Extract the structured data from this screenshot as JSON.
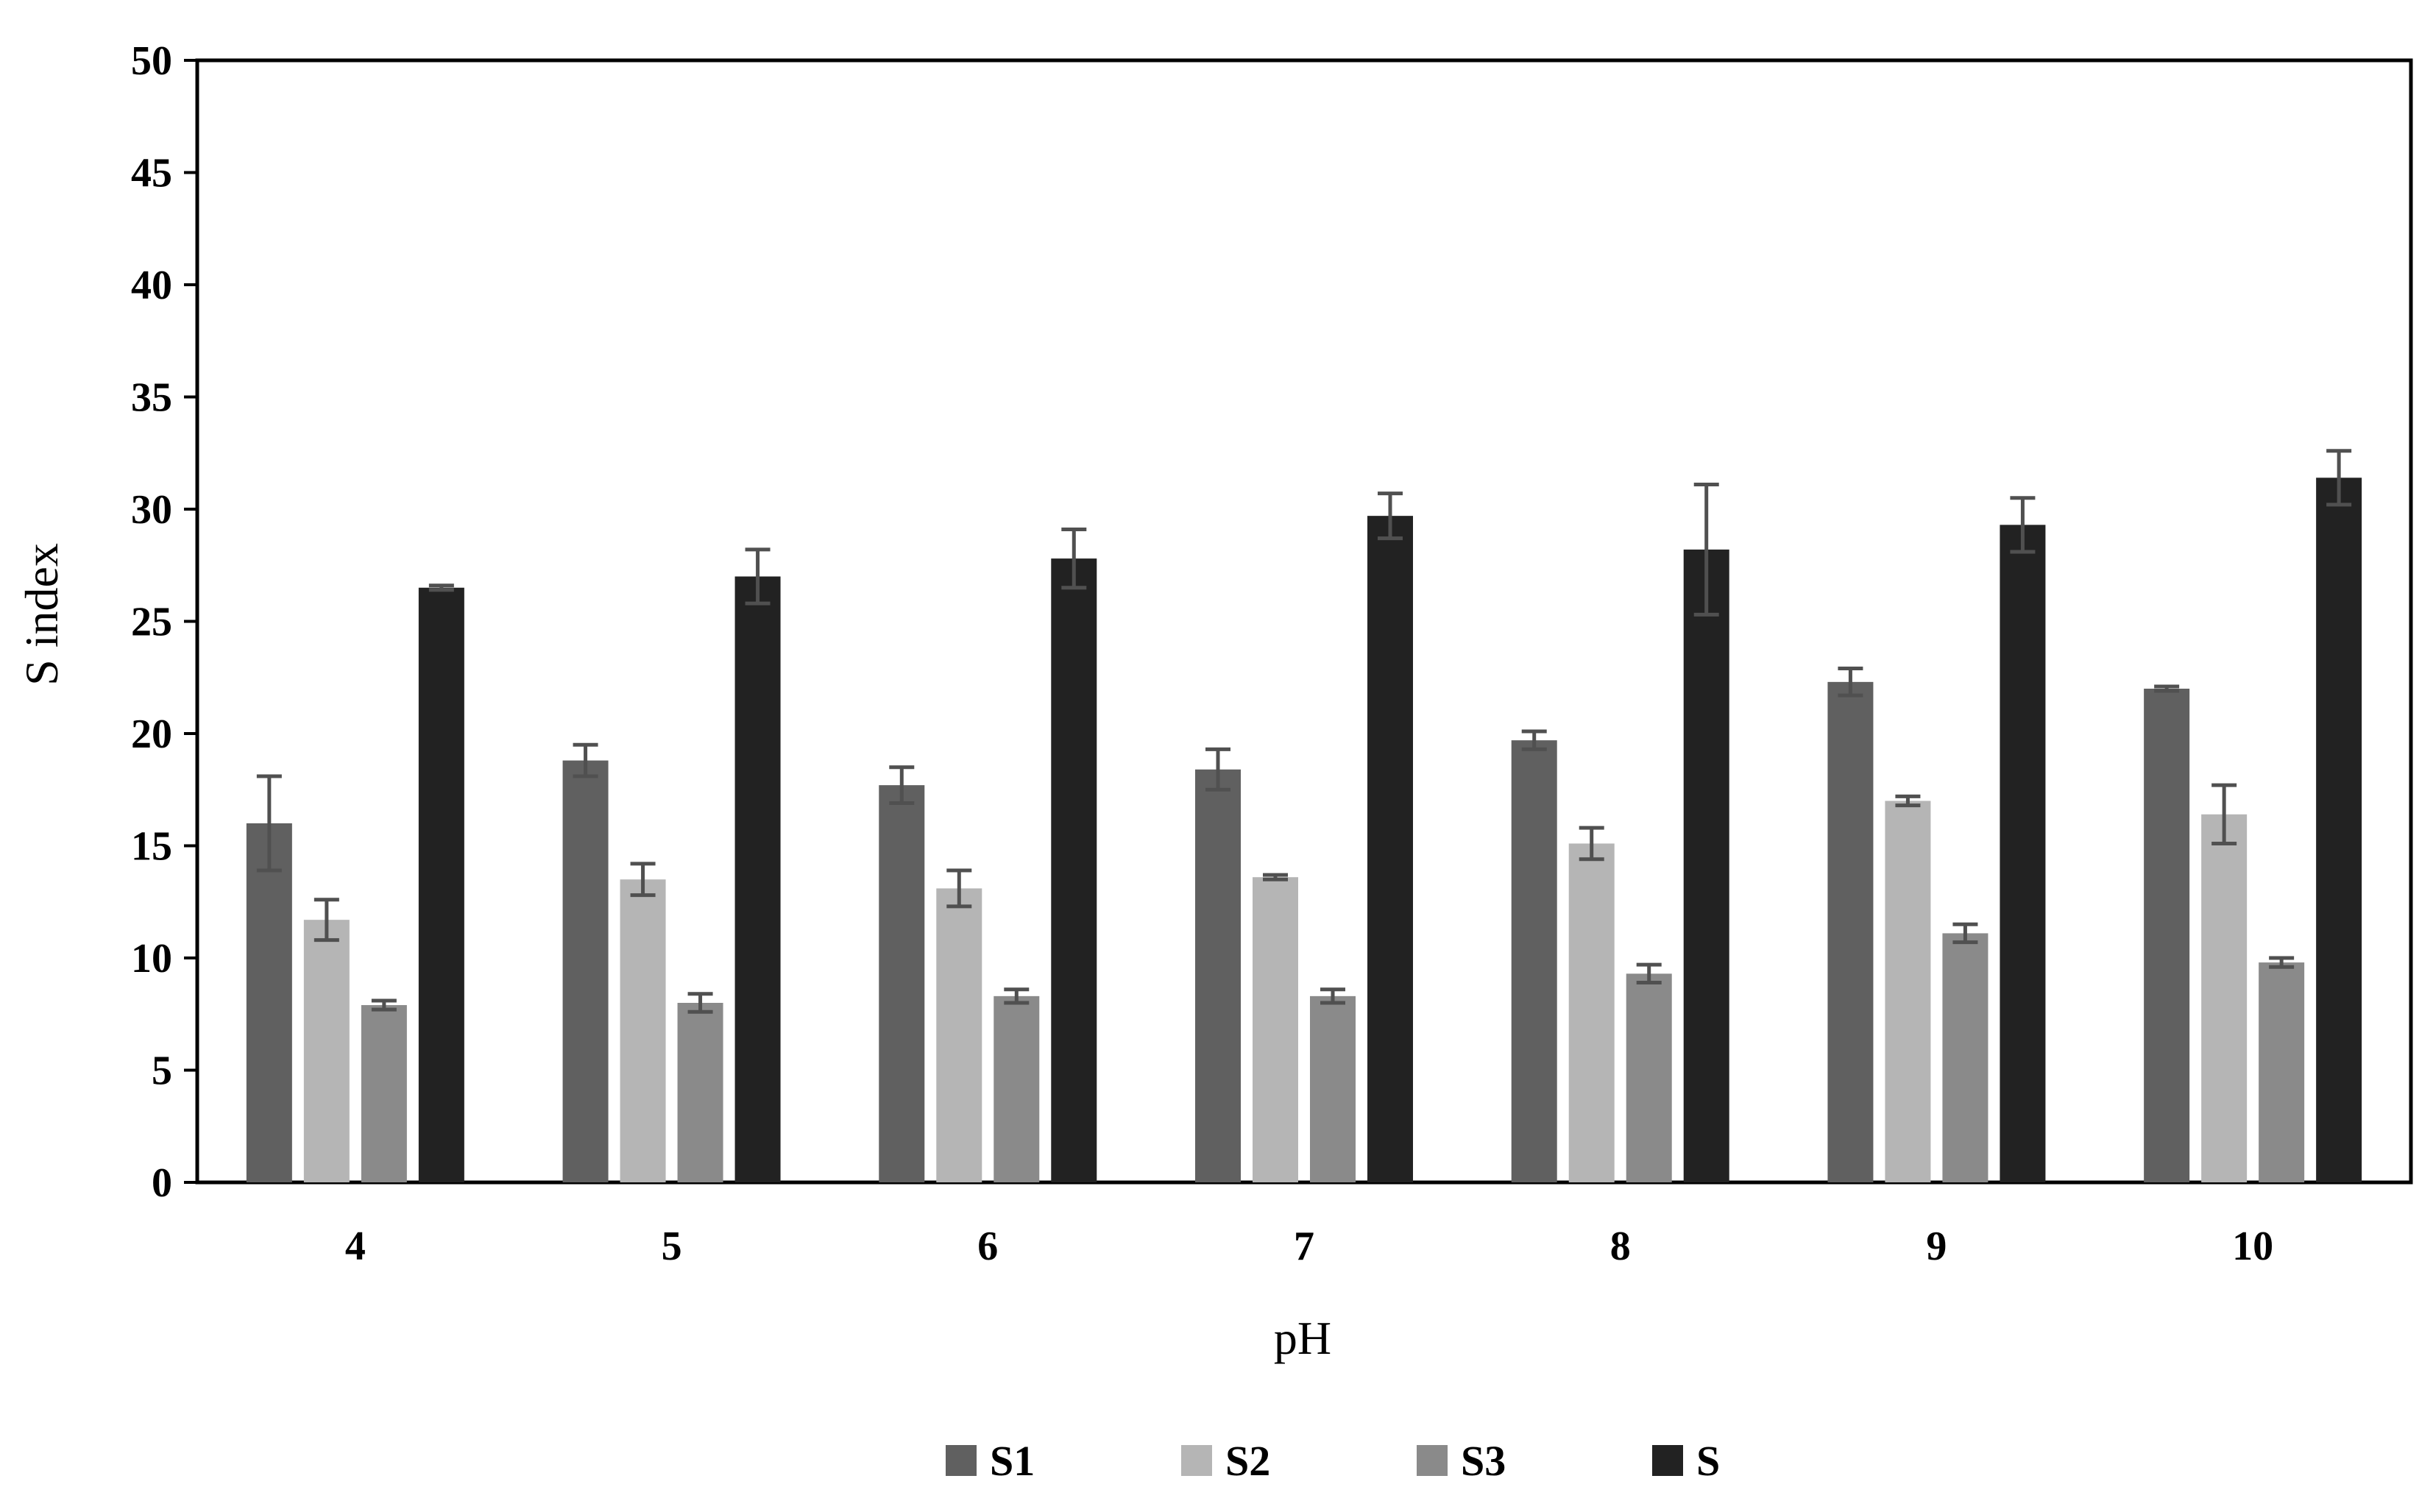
{
  "chart_data": {
    "type": "bar",
    "xlabel": "pH",
    "ylabel": "S index",
    "ylim": [
      0,
      50
    ],
    "yticks": [
      0,
      5,
      10,
      15,
      20,
      25,
      30,
      35,
      40,
      45,
      50
    ],
    "categories": [
      "4",
      "5",
      "6",
      "7",
      "8",
      "9",
      "10"
    ],
    "grid": false,
    "legend_position": "bottom",
    "series": [
      {
        "name": "S1",
        "color": "#606060",
        "values": [
          16.0,
          18.8,
          17.7,
          18.4,
          19.7,
          22.3,
          22.0
        ],
        "errors": [
          2.1,
          0.7,
          0.8,
          0.9,
          0.4,
          0.6,
          0.1
        ]
      },
      {
        "name": "S2",
        "color": "#b5b5b5",
        "values": [
          11.7,
          13.5,
          13.1,
          13.6,
          15.1,
          17.0,
          16.4
        ],
        "errors": [
          0.9,
          0.7,
          0.8,
          0.1,
          0.7,
          0.2,
          1.3
        ]
      },
      {
        "name": "S3",
        "color": "#8a8a8a",
        "values": [
          7.9,
          8.0,
          8.3,
          8.3,
          9.3,
          11.1,
          9.8
        ],
        "errors": [
          0.2,
          0.4,
          0.3,
          0.3,
          0.4,
          0.4,
          0.2
        ]
      },
      {
        "name": "S",
        "color": "#222222",
        "values": [
          26.5,
          27.0,
          27.8,
          29.7,
          28.2,
          29.3,
          31.4
        ],
        "errors": [
          0.1,
          1.2,
          1.3,
          1.0,
          2.9,
          1.2,
          1.2
        ]
      }
    ],
    "error_bar_color": "#505050"
  }
}
